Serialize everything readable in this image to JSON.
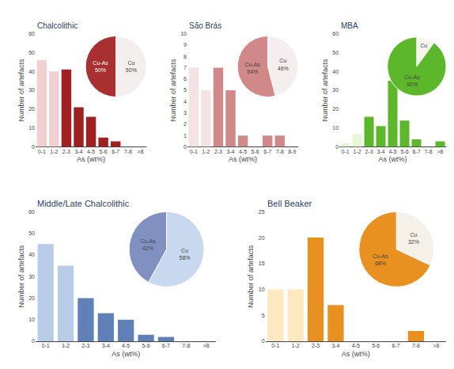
{
  "chart_data": [
    {
      "type": "bar",
      "title": "Chalcolithic",
      "xlabel": "As (wt%)",
      "ylabel": "Number of artefacts",
      "categories": [
        "0-1",
        "1-2",
        "2-3",
        "3-4",
        "4-5",
        "5-6",
        "6-7",
        "7-8",
        ">8"
      ],
      "values": [
        46,
        40,
        41,
        21,
        16,
        5,
        3,
        0,
        0
      ],
      "colors": [
        "#f0d0d0",
        "#f0d0d0",
        "#9e2020",
        "#9e2020",
        "#9e2020",
        "#9e2020",
        "#9e2020",
        "#9e2020",
        "#9e2020"
      ],
      "ylim": [
        0,
        60
      ],
      "yticks": [
        0,
        10,
        20,
        30,
        40,
        50,
        60
      ],
      "grid": false
    },
    {
      "type": "pie",
      "categories": [
        "Cu",
        "Cu-As"
      ],
      "values": [
        50,
        50
      ],
      "value_labels": [
        "50%",
        "50%"
      ],
      "colors": [
        "#f5eeee",
        "#a83030"
      ],
      "data_labels": true
    },
    {
      "type": "bar",
      "title": "São Brás",
      "xlabel": "As (wt%)",
      "ylabel": "Number of artefacts",
      "categories": [
        "0-1",
        "1-2",
        "2-3",
        "3-4",
        "4-5",
        "5-6",
        "6-7",
        "7-8",
        "8-9"
      ],
      "values": [
        7,
        5,
        7,
        5,
        1,
        0,
        1,
        1,
        0
      ],
      "colors": [
        "#f5e2e2",
        "#f5e2e2",
        "#d08888",
        "#d08888",
        "#d08888",
        "#d08888",
        "#d08888",
        "#d08888",
        "#d08888"
      ],
      "ylim": [
        0,
        10
      ],
      "yticks": [
        0,
        1,
        2,
        3,
        4,
        5,
        6,
        7,
        8,
        9,
        10
      ],
      "grid": false
    },
    {
      "type": "pie",
      "categories": [
        "Cu",
        "Cu-As"
      ],
      "values": [
        46,
        54
      ],
      "value_labels": [
        "46%",
        "54%"
      ],
      "colors": [
        "#f5eeee",
        "#d08888"
      ],
      "data_labels": true
    },
    {
      "type": "bar",
      "title": "MBA",
      "xlabel": "As (wt%)",
      "ylabel": "Number of artefacts",
      "categories": [
        "0-1",
        "1-2",
        "2-3",
        "3-4",
        "4-5",
        "5-6",
        "6-7",
        "7-8",
        ">8"
      ],
      "values": [
        2,
        7,
        16,
        11,
        35,
        14,
        4,
        0,
        3
      ],
      "colors": [
        "#e8f5d8",
        "#e8f5d8",
        "#5cb82a",
        "#5cb82a",
        "#5cb82a",
        "#5cb82a",
        "#5cb82a",
        "#5cb82a",
        "#5cb82a"
      ],
      "ylim": [
        0,
        60
      ],
      "yticks": [
        0,
        10,
        20,
        30,
        40,
        50,
        60
      ],
      "grid": false
    },
    {
      "type": "pie",
      "categories": [
        "Cu",
        "Cu-As"
      ],
      "values": [
        10,
        90
      ],
      "value_labels": [
        null,
        "90%"
      ],
      "colors": [
        "#f5f5ee",
        "#5cb82a"
      ],
      "data_labels": true
    },
    {
      "type": "bar",
      "title": "Middle/Late Chalcolithic",
      "xlabel": "As (wt%)",
      "ylabel": "Number of artefacts",
      "categories": [
        "0-1",
        "1-2",
        "2-3",
        "3-4",
        "4-5",
        "5-6",
        "6-7",
        "7-8",
        ">8"
      ],
      "values": [
        45,
        35,
        20,
        13,
        10,
        3,
        2,
        0,
        0
      ],
      "colors": [
        "#b8cce8",
        "#b8cce8",
        "#6080b8",
        "#6080b8",
        "#6080b8",
        "#6080b8",
        "#6080b8",
        "#6080b8",
        "#6080b8"
      ],
      "ylim": [
        0,
        60
      ],
      "yticks": [
        0,
        10,
        20,
        30,
        40,
        50,
        60
      ],
      "grid": false
    },
    {
      "type": "pie",
      "categories": [
        "Cu",
        "Cu-As"
      ],
      "values": [
        58,
        42
      ],
      "value_labels": [
        "58%",
        "42%"
      ],
      "colors": [
        "#c8d8ee",
        "#8090c0"
      ],
      "data_labels": true
    },
    {
      "type": "bar",
      "title": "Bell Beaker",
      "xlabel": "As (wt%)",
      "ylabel": "Number of artefacts",
      "categories": [
        "0-1",
        "1-2",
        "2-3",
        "3-4",
        "4-5",
        "5-6",
        "6-7",
        "7-8",
        ">8"
      ],
      "values": [
        10,
        10,
        20,
        7,
        0,
        0,
        0,
        2,
        0
      ],
      "colors": [
        "#fde8c0",
        "#fde8c0",
        "#e89020",
        "#e89020",
        "#e89020",
        "#e89020",
        "#e89020",
        "#e89020",
        "#e89020"
      ],
      "ylim": [
        0,
        25
      ],
      "yticks": [
        0,
        5,
        10,
        15,
        20,
        25
      ],
      "grid": false
    },
    {
      "type": "pie",
      "categories": [
        "Cu",
        "Cu-As"
      ],
      "values": [
        32,
        68
      ],
      "value_labels": [
        "32%",
        "68%"
      ],
      "colors": [
        "#f5f0e8",
        "#e89020"
      ],
      "data_labels": true
    }
  ]
}
